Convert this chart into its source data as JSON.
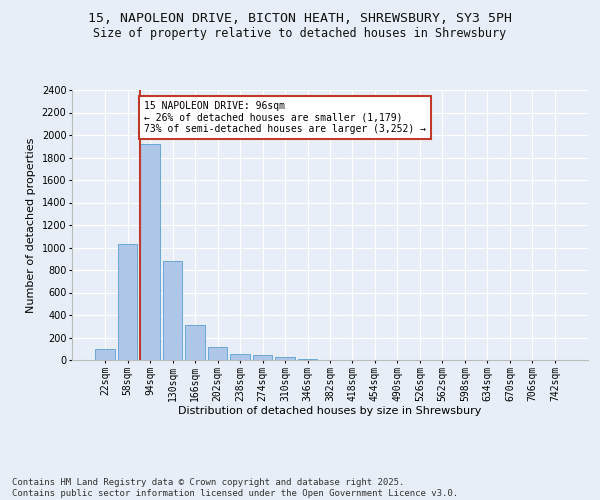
{
  "title_line1": "15, NAPOLEON DRIVE, BICTON HEATH, SHREWSBURY, SY3 5PH",
  "title_line2": "Size of property relative to detached houses in Shrewsbury",
  "xlabel": "Distribution of detached houses by size in Shrewsbury",
  "ylabel": "Number of detached properties",
  "categories": [
    "22sqm",
    "58sqm",
    "94sqm",
    "130sqm",
    "166sqm",
    "202sqm",
    "238sqm",
    "274sqm",
    "310sqm",
    "346sqm",
    "382sqm",
    "418sqm",
    "454sqm",
    "490sqm",
    "526sqm",
    "562sqm",
    "598sqm",
    "634sqm",
    "670sqm",
    "706sqm",
    "742sqm"
  ],
  "values": [
    95,
    1035,
    1920,
    880,
    310,
    120,
    52,
    45,
    30,
    12,
    0,
    0,
    0,
    0,
    0,
    0,
    0,
    0,
    0,
    0,
    0
  ],
  "bar_color": "#aec6e8",
  "bar_edge_color": "#5a9fd4",
  "vline_color": "#c0392b",
  "vline_x_index": 2,
  "annotation_text": "15 NAPOLEON DRIVE: 96sqm\n← 26% of detached houses are smaller (1,179)\n73% of semi-detached houses are larger (3,252) →",
  "annotation_box_color": "#ffffff",
  "annotation_box_edge": "#c0392b",
  "ylim": [
    0,
    2400
  ],
  "yticks": [
    0,
    200,
    400,
    600,
    800,
    1000,
    1200,
    1400,
    1600,
    1800,
    2000,
    2200,
    2400
  ],
  "background_color": "#e8eef7",
  "grid_color": "#ffffff",
  "footer_text": "Contains HM Land Registry data © Crown copyright and database right 2025.\nContains public sector information licensed under the Open Government Licence v3.0.",
  "title_fontsize": 9.5,
  "subtitle_fontsize": 8.5,
  "axis_label_fontsize": 8,
  "tick_fontsize": 7,
  "annotation_fontsize": 7,
  "footer_fontsize": 6.5
}
